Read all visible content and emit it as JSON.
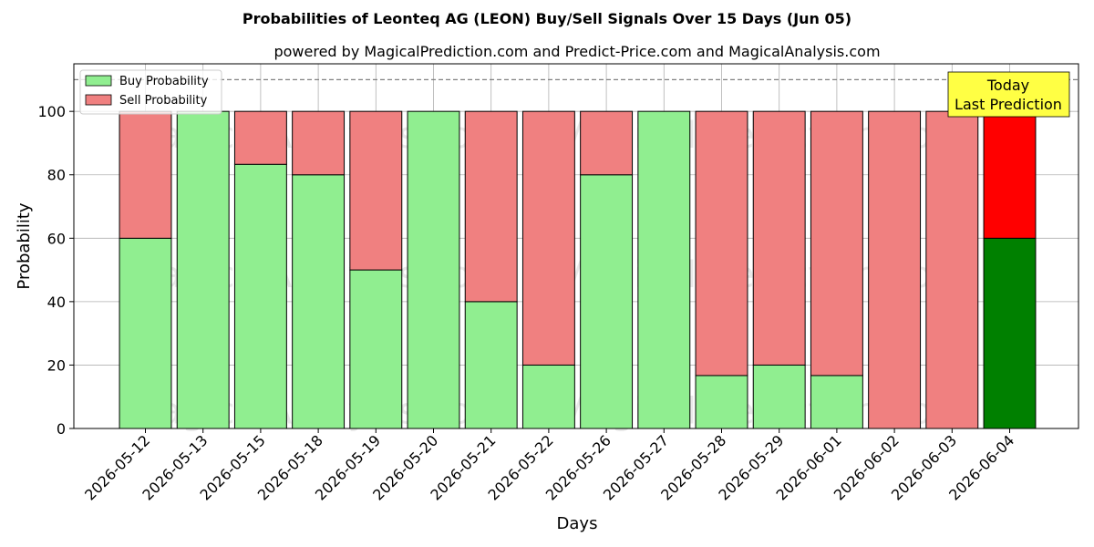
{
  "chart_data": {
    "type": "bar",
    "stacked": true,
    "title": "Probabilities of Leonteq AG (LEON) Buy/Sell Signals Over 15 Days (Jun 05)",
    "subtitle": "powered by MagicalPrediction.com and Predict-Price.com and MagicalAnalysis.com",
    "xlabel": "Days",
    "ylabel": "Probability",
    "ylim": [
      0,
      115
    ],
    "yticks": [
      0,
      20,
      40,
      60,
      80,
      100
    ],
    "grid": true,
    "legend_position": "top-left",
    "reference_line": 110,
    "categories": [
      "2026-05-12",
      "2026-05-13",
      "2026-05-15",
      "2026-05-18",
      "2026-05-19",
      "2026-05-20",
      "2026-05-21",
      "2026-05-22",
      "2026-05-26",
      "2026-05-27",
      "2026-05-28",
      "2026-05-29",
      "2026-06-01",
      "2026-06-02",
      "2026-06-03",
      "2026-06-04"
    ],
    "series": [
      {
        "name": "Buy Probability",
        "color": "#90ee90",
        "values": [
          60,
          100,
          83.3,
          80,
          50,
          100,
          40,
          20,
          80,
          100,
          16.7,
          20,
          16.7,
          0,
          0,
          60
        ]
      },
      {
        "name": "Sell Probability",
        "color": "#f08080",
        "values": [
          40,
          0,
          16.7,
          20,
          50,
          0,
          60,
          80,
          20,
          0,
          83.3,
          80,
          83.3,
          100,
          100,
          40
        ]
      }
    ],
    "highlight": {
      "index": 15,
      "buy_color": "#008000",
      "sell_color": "#ff0000"
    },
    "annotation": {
      "lines": [
        "Today",
        "Last Prediction"
      ],
      "background": "#ffff44"
    },
    "watermarks": [
      "MagicalAnalysis.com",
      "MagicalPrediction.com"
    ]
  }
}
